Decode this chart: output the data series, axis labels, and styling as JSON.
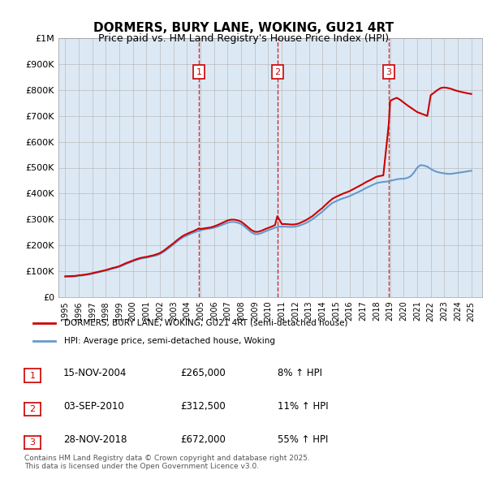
{
  "title": "DORMERS, BURY LANE, WOKING, GU21 4RT",
  "subtitle": "Price paid vs. HM Land Registry's House Price Index (HPI)",
  "background_color": "#dce9f5",
  "plot_bg_color": "#dce9f5",
  "outer_bg_color": "#ffffff",
  "ylim": [
    0,
    1000000
  ],
  "yticks": [
    0,
    100000,
    200000,
    300000,
    400000,
    500000,
    600000,
    700000,
    800000,
    900000,
    1000000
  ],
  "ytick_labels": [
    "£0",
    "£100K",
    "£200K",
    "£300K",
    "£400K",
    "£500K",
    "£600K",
    "£700K",
    "£800K",
    "£900K",
    "£1M"
  ],
  "xlim_start": 1994.5,
  "xlim_end": 2025.8,
  "xticks": [
    1995,
    1996,
    1997,
    1998,
    1999,
    2000,
    2001,
    2002,
    2003,
    2004,
    2005,
    2006,
    2007,
    2008,
    2009,
    2010,
    2011,
    2012,
    2013,
    2014,
    2015,
    2016,
    2017,
    2018,
    2019,
    2020,
    2021,
    2022,
    2023,
    2024,
    2025
  ],
  "red_line_color": "#cc0000",
  "blue_line_color": "#6699cc",
  "grid_color": "#bbbbbb",
  "transaction_marker_color": "#cc0000",
  "vline_color": "#cc0000",
  "transactions": [
    {
      "label": "1",
      "date": 2004.88,
      "price": 265000,
      "x_label": 2005.0
    },
    {
      "label": "2",
      "date": 2010.67,
      "price": 312500,
      "x_label": 2010.67
    },
    {
      "label": "3",
      "date": 2018.91,
      "price": 672000,
      "x_label": 2018.91
    }
  ],
  "hpi_data_x": [
    1995,
    1995.25,
    1995.5,
    1995.75,
    1996,
    1996.25,
    1996.5,
    1996.75,
    1997,
    1997.25,
    1997.5,
    1997.75,
    1998,
    1998.25,
    1998.5,
    1998.75,
    1999,
    1999.25,
    1999.5,
    1999.75,
    2000,
    2000.25,
    2000.5,
    2000.75,
    2001,
    2001.25,
    2001.5,
    2001.75,
    2002,
    2002.25,
    2002.5,
    2002.75,
    2003,
    2003.25,
    2003.5,
    2003.75,
    2004,
    2004.25,
    2004.5,
    2004.75,
    2005,
    2005.25,
    2005.5,
    2005.75,
    2006,
    2006.25,
    2006.5,
    2006.75,
    2007,
    2007.25,
    2007.5,
    2007.75,
    2008,
    2008.25,
    2008.5,
    2008.75,
    2009,
    2009.25,
    2009.5,
    2009.75,
    2010,
    2010.25,
    2010.5,
    2010.75,
    2011,
    2011.25,
    2011.5,
    2011.75,
    2012,
    2012.25,
    2012.5,
    2012.75,
    2013,
    2013.25,
    2013.5,
    2013.75,
    2014,
    2014.25,
    2014.5,
    2014.75,
    2015,
    2015.25,
    2015.5,
    2015.75,
    2016,
    2016.25,
    2016.5,
    2016.75,
    2017,
    2017.25,
    2017.5,
    2017.75,
    2018,
    2018.25,
    2018.5,
    2018.75,
    2019,
    2019.25,
    2019.5,
    2019.75,
    2020,
    2020.25,
    2020.5,
    2020.75,
    2021,
    2021.25,
    2021.5,
    2021.75,
    2022,
    2022.25,
    2022.5,
    2022.75,
    2023,
    2023.25,
    2023.5,
    2023.75,
    2024,
    2024.25,
    2024.5,
    2024.75,
    2025
  ],
  "hpi_data_y": [
    78000,
    78500,
    79000,
    79500,
    82000,
    83000,
    85000,
    87000,
    90000,
    93000,
    96000,
    99000,
    102000,
    106000,
    110000,
    113000,
    117000,
    122000,
    128000,
    133000,
    138000,
    143000,
    147000,
    150000,
    152000,
    155000,
    158000,
    161000,
    166000,
    174000,
    183000,
    193000,
    203000,
    214000,
    224000,
    232000,
    238000,
    244000,
    249000,
    254000,
    258000,
    261000,
    263000,
    265000,
    268000,
    272000,
    277000,
    282000,
    287000,
    290000,
    290000,
    287000,
    282000,
    272000,
    261000,
    250000,
    243000,
    243000,
    247000,
    253000,
    258000,
    263000,
    268000,
    272000,
    272000,
    272000,
    271000,
    271000,
    272000,
    275000,
    280000,
    285000,
    292000,
    300000,
    310000,
    320000,
    330000,
    342000,
    354000,
    364000,
    370000,
    376000,
    381000,
    385000,
    390000,
    396000,
    402000,
    408000,
    415000,
    422000,
    428000,
    434000,
    440000,
    443000,
    445000,
    446000,
    449000,
    452000,
    455000,
    457000,
    457000,
    460000,
    466000,
    480000,
    500000,
    510000,
    508000,
    504000,
    495000,
    488000,
    483000,
    480000,
    478000,
    476000,
    476000,
    478000,
    480000,
    482000,
    484000,
    486000,
    488000
  ],
  "red_data_x": [
    1995,
    1995.25,
    1995.5,
    1995.75,
    1996,
    1996.25,
    1996.5,
    1996.75,
    1997,
    1997.25,
    1997.5,
    1997.75,
    1998,
    1998.25,
    1998.5,
    1998.75,
    1999,
    1999.25,
    1999.5,
    1999.75,
    2000,
    2000.25,
    2000.5,
    2000.75,
    2001,
    2001.25,
    2001.5,
    2001.75,
    2002,
    2002.25,
    2002.5,
    2002.75,
    2003,
    2003.25,
    2003.5,
    2003.75,
    2004,
    2004.25,
    2004.5,
    2004.88,
    2005,
    2005.25,
    2005.5,
    2005.75,
    2006,
    2006.25,
    2006.5,
    2006.75,
    2007,
    2007.25,
    2007.5,
    2007.75,
    2008,
    2008.25,
    2008.5,
    2008.75,
    2009,
    2009.25,
    2009.5,
    2009.75,
    2010,
    2010.25,
    2010.5,
    2010.67,
    2011,
    2011.25,
    2011.5,
    2011.75,
    2012,
    2012.25,
    2012.5,
    2012.75,
    2013,
    2013.25,
    2013.5,
    2013.75,
    2014,
    2014.25,
    2014.5,
    2014.75,
    2015,
    2015.25,
    2015.5,
    2015.75,
    2016,
    2016.25,
    2016.5,
    2016.75,
    2017,
    2017.25,
    2017.5,
    2017.75,
    2018,
    2018.25,
    2018.5,
    2018.91,
    2019,
    2019.25,
    2019.5,
    2019.75,
    2020,
    2020.25,
    2020.5,
    2020.75,
    2021,
    2021.25,
    2021.5,
    2021.75,
    2022,
    2022.25,
    2022.5,
    2022.75,
    2023,
    2023.25,
    2023.5,
    2023.75,
    2024,
    2024.25,
    2024.5,
    2024.75,
    2025
  ],
  "red_data_y": [
    80000,
    80500,
    81000,
    81500,
    84000,
    85000,
    87000,
    89000,
    92000,
    95000,
    98000,
    101000,
    104000,
    108000,
    112000,
    115000,
    119000,
    125000,
    131000,
    136000,
    141000,
    146000,
    150000,
    153000,
    155000,
    158000,
    161000,
    165000,
    170000,
    178000,
    188000,
    198000,
    208000,
    219000,
    229000,
    238000,
    244000,
    250000,
    255000,
    265000,
    263000,
    265000,
    267000,
    269000,
    273000,
    278000,
    284000,
    290000,
    296000,
    299000,
    299000,
    296000,
    291000,
    281000,
    270000,
    259000,
    252000,
    252000,
    256000,
    262000,
    267000,
    272000,
    278000,
    312500,
    282000,
    282000,
    281000,
    280000,
    281000,
    284000,
    290000,
    296000,
    304000,
    312000,
    323000,
    334000,
    344000,
    357000,
    369000,
    380000,
    387000,
    393000,
    399000,
    404000,
    409000,
    416000,
    423000,
    430000,
    437000,
    445000,
    451000,
    458000,
    465000,
    468000,
    470000,
    672000,
    758000,
    765000,
    770000,
    762000,
    752000,
    742000,
    733000,
    724000,
    715000,
    710000,
    705000,
    700000,
    780000,
    790000,
    800000,
    808000,
    810000,
    808000,
    805000,
    800000,
    796000,
    793000,
    790000,
    787000,
    785000
  ],
  "legend_entries": [
    {
      "label": "DORMERS, BURY LANE, WOKING, GU21 4RT (semi-detached house)",
      "color": "#cc0000"
    },
    {
      "label": "HPI: Average price, semi-detached house, Woking",
      "color": "#6699cc"
    }
  ],
  "table_data": [
    {
      "num": "1",
      "date": "15-NOV-2004",
      "price": "£265,000",
      "change": "8% ↑ HPI"
    },
    {
      "num": "2",
      "date": "03-SEP-2010",
      "price": "£312,500",
      "change": "11% ↑ HPI"
    },
    {
      "num": "3",
      "date": "28-NOV-2018",
      "price": "£672,000",
      "change": "55% ↑ HPI"
    }
  ],
  "footer_text": "Contains HM Land Registry data © Crown copyright and database right 2025.\nThis data is licensed under the Open Government Licence v3.0."
}
